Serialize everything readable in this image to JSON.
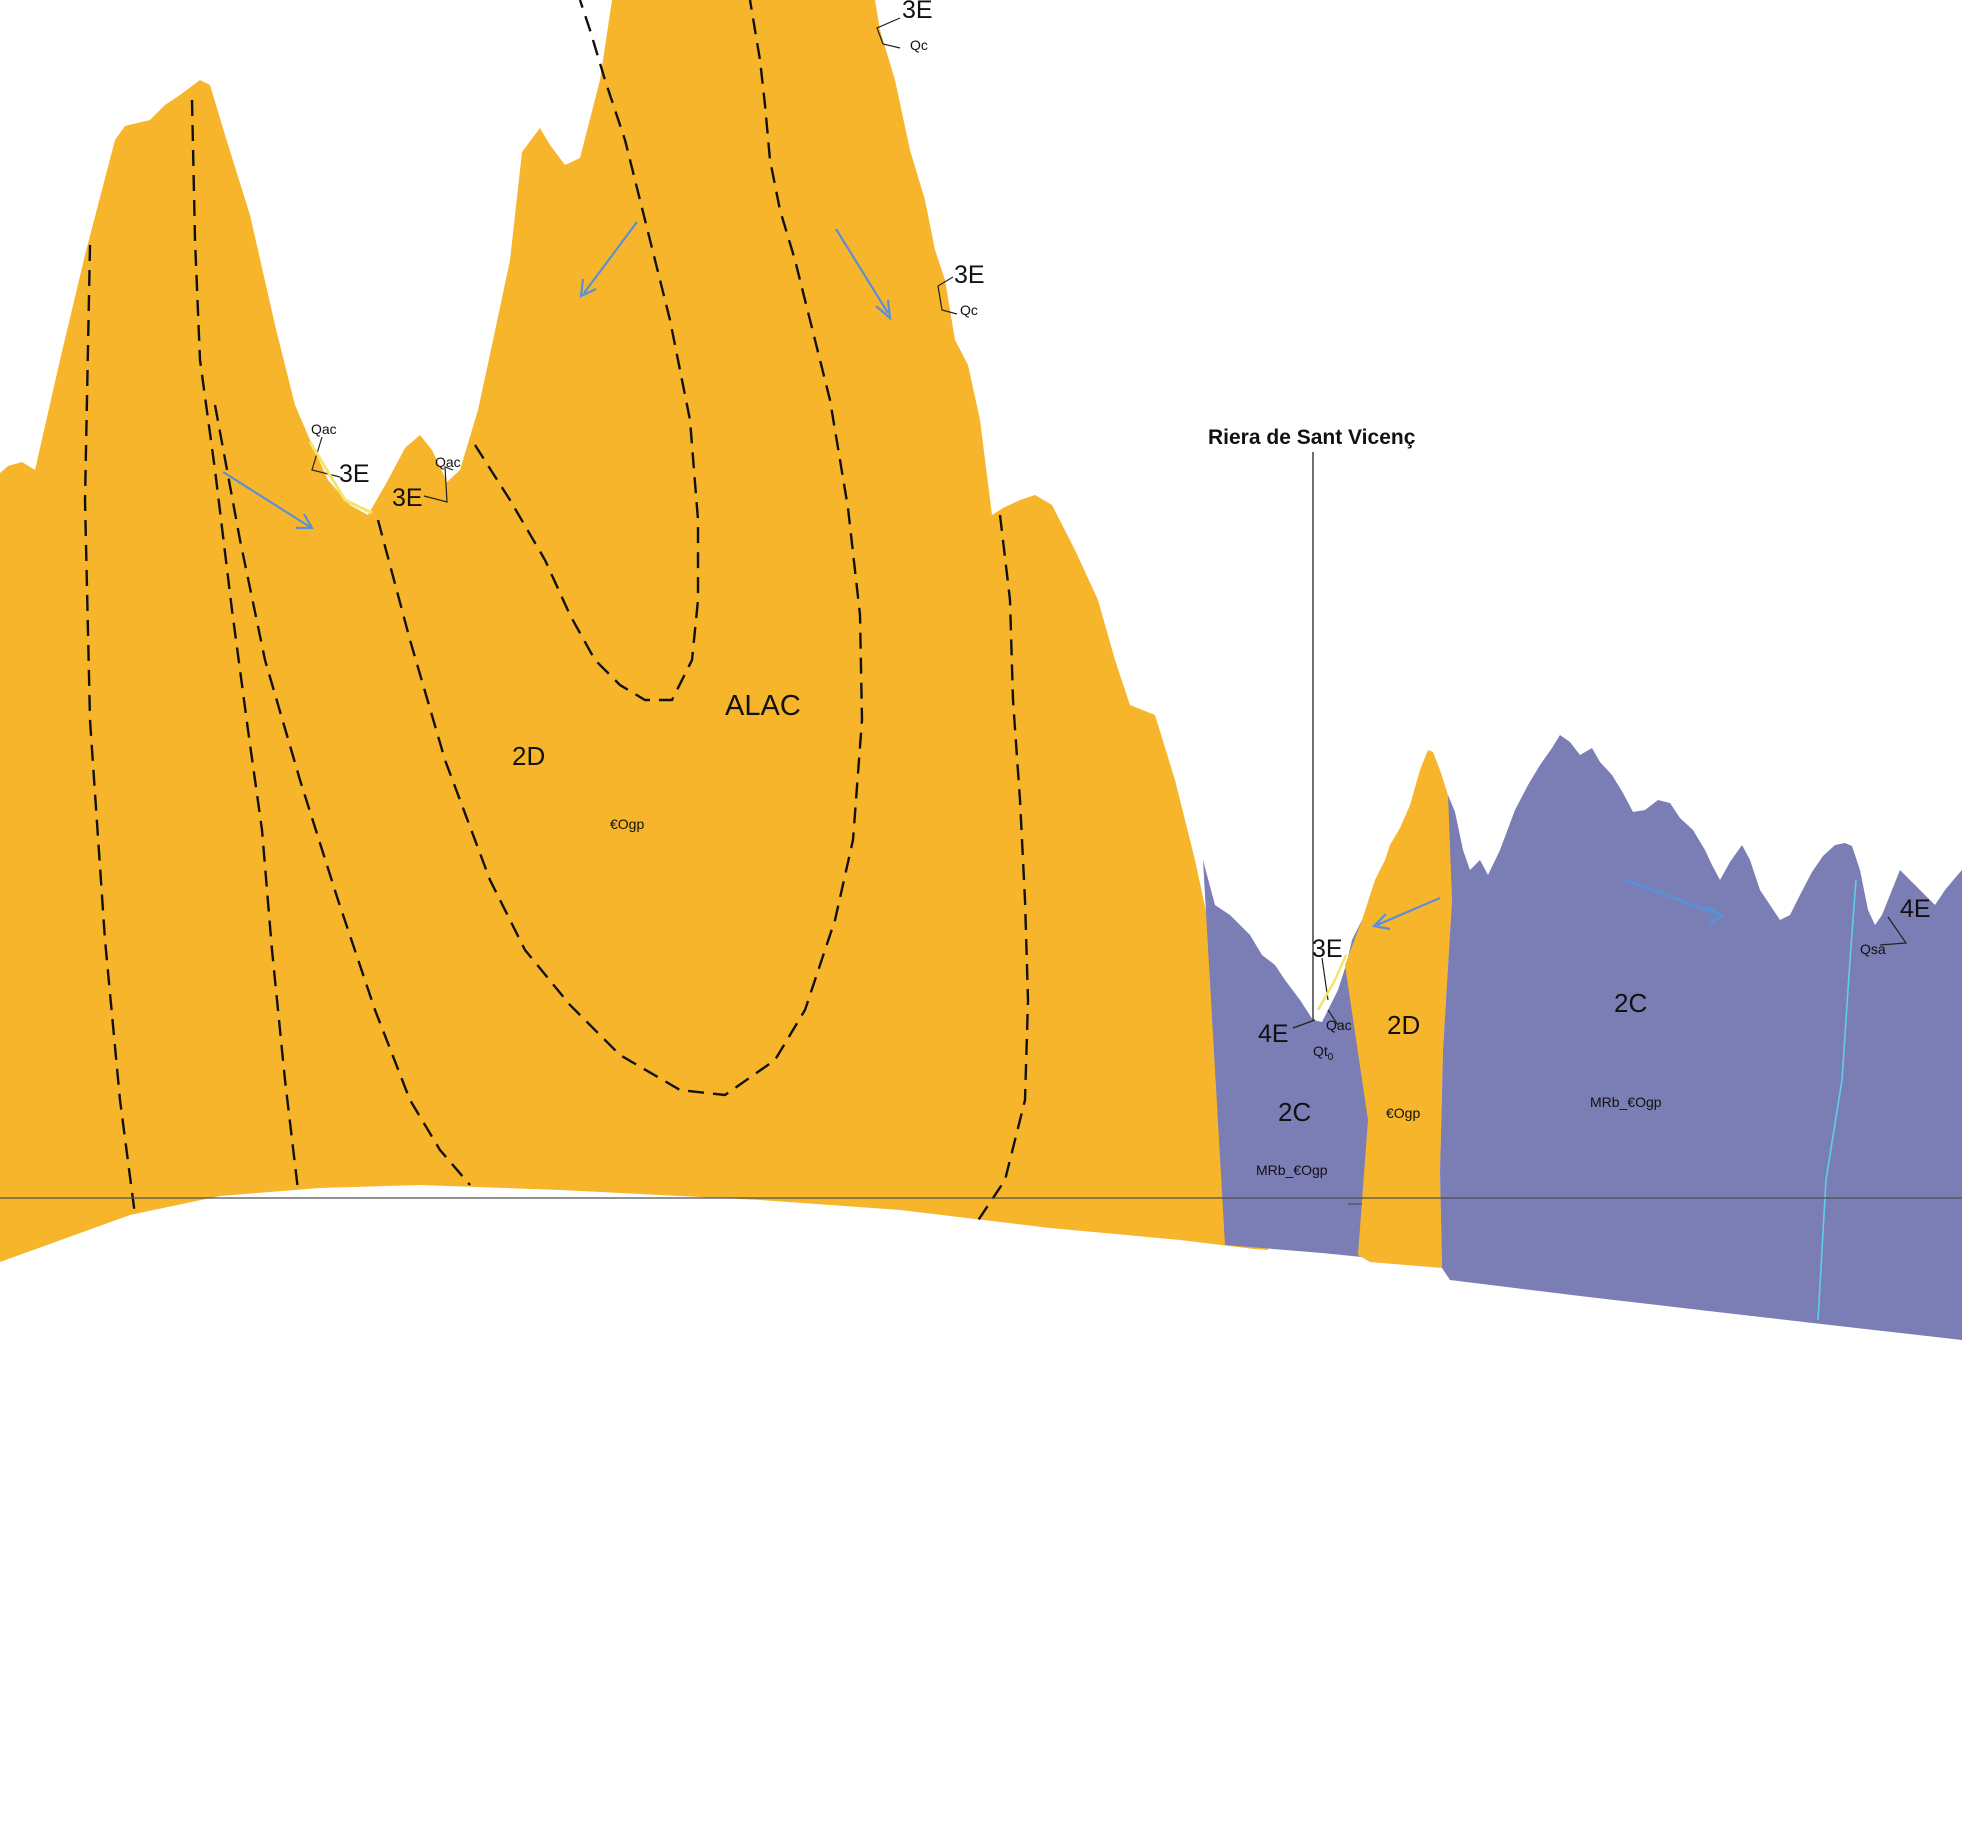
{
  "colors": {
    "unit_2D": "#f7b52c",
    "unit_2C": "#7b7db5",
    "dip_arrows": "#5b8fd6",
    "background": "#ffffff"
  },
  "labels": {
    "river": "Riera de Sant Vicenç",
    "alac": "ALAC",
    "zone_2D_main": "2D",
    "formation_main": "€Ogp",
    "zone_2D_right": "2D",
    "formation_right": "€Ogp",
    "zone_2C_left": "2C",
    "formation_2C_left": "MRb_€Ogp",
    "zone_2C_right": "2C",
    "formation_2C_right": "MRb_€Ogp",
    "deposit_3E_top": "3E",
    "deposit_Qc_top": "Qc",
    "deposit_3E_upper": "3E",
    "deposit_Qc_upper": "Qc",
    "deposit_Qac_a": "Qac",
    "deposit_3E_a": "3E",
    "deposit_3E_b": "3E",
    "deposit_Qac_b": "Qac",
    "deposit_3E_c": "3E",
    "deposit_4E_a": "4E",
    "deposit_Qac_c": "Qac",
    "deposit_Qt0": "Qt",
    "deposit_Qt0_sub": "0",
    "deposit_4E_b": "4E",
    "deposit_Qsa": "Qsa"
  },
  "icons": {
    "dip_arrow": "arrow-icon"
  }
}
